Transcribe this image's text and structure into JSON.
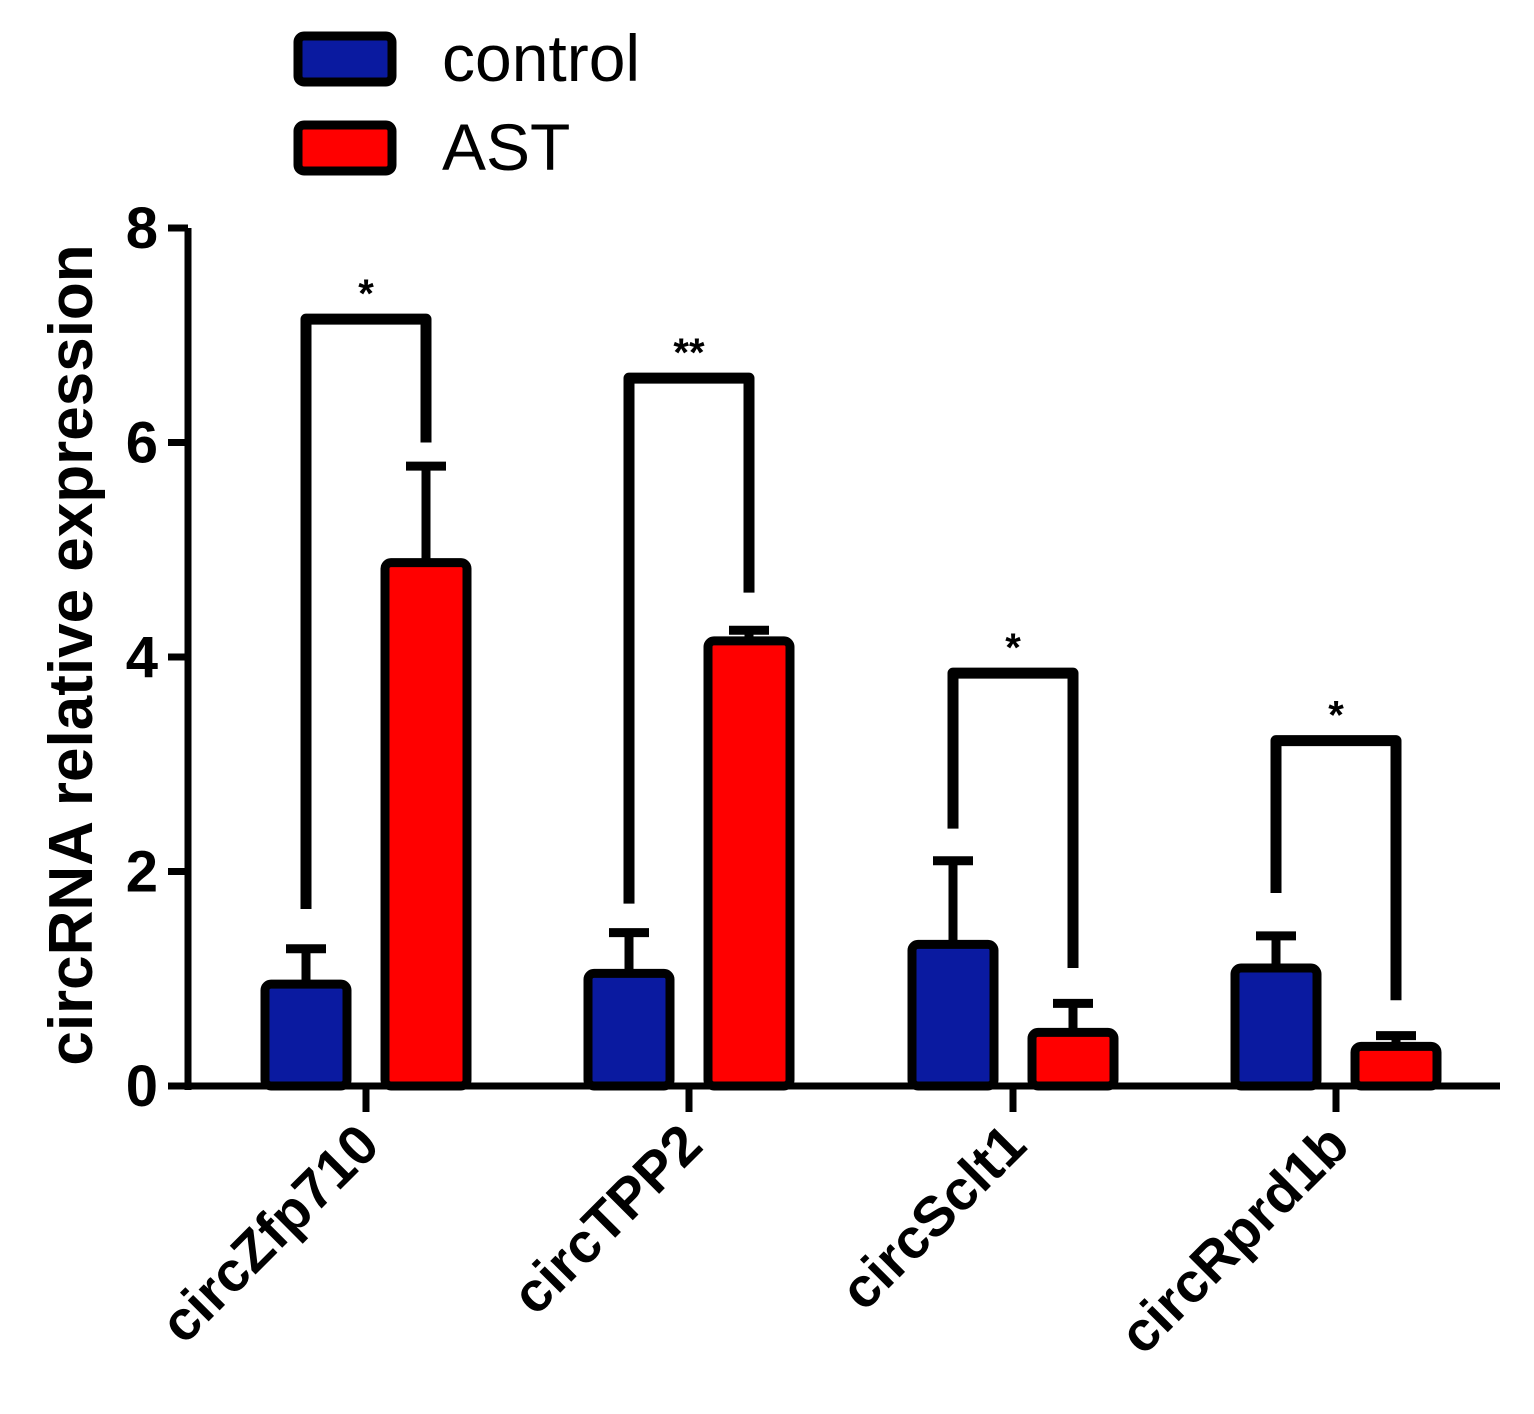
{
  "chart_data": {
    "type": "bar",
    "title": "",
    "xlabel": "",
    "ylabel": "circRNA relative expression",
    "ylim": [
      0,
      8
    ],
    "yticks": [
      0,
      2,
      4,
      6,
      8
    ],
    "categories": [
      "circZfp710",
      "circTPP2",
      "circSclt1",
      "circRprd1b"
    ],
    "series": [
      {
        "name": "control",
        "color": "#0a1aa0",
        "values": [
          0.95,
          1.05,
          1.32,
          1.1
        ],
        "errors": [
          0.33,
          0.38,
          0.78,
          0.3
        ]
      },
      {
        "name": "AST",
        "color": "#ff0000",
        "values": [
          4.88,
          4.15,
          0.5,
          0.37
        ],
        "errors": [
          0.9,
          0.1,
          0.27,
          0.1
        ]
      }
    ],
    "significance": [
      {
        "label": "*",
        "bracket_level": 7.15,
        "left_drop": 1.65,
        "right_drop": 6.0
      },
      {
        "label": "**",
        "bracket_level": 6.6,
        "left_drop": 1.7,
        "right_drop": 4.6
      },
      {
        "label": "*",
        "bracket_level": 3.85,
        "left_drop": 2.4,
        "right_drop": 1.1
      },
      {
        "label": "*",
        "bracket_level": 3.22,
        "left_drop": 1.8,
        "right_drop": 0.8
      }
    ],
    "legend": {
      "placement": "top-left",
      "entries": [
        "control",
        "AST"
      ]
    },
    "grid": false
  }
}
